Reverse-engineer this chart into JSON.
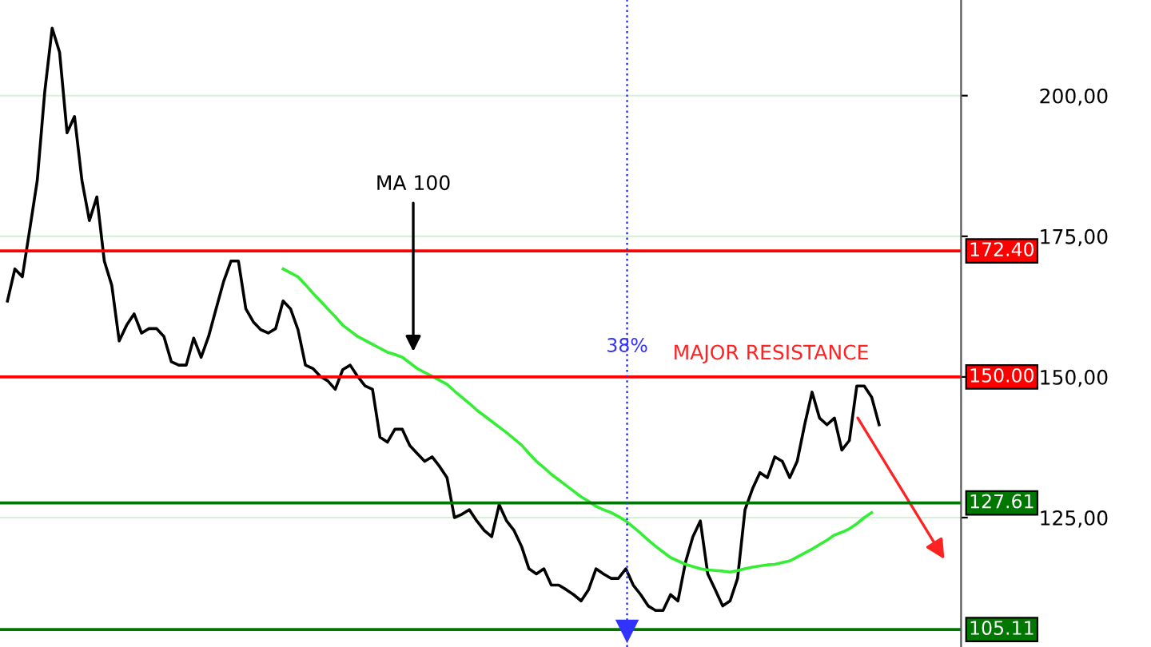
{
  "chart_data": {
    "type": "line",
    "categories": [
      null,
      null,
      null,
      null,
      null,
      null,
      null,
      null,
      null,
      null,
      null,
      null,
      null,
      null,
      null,
      null,
      null,
      null,
      null,
      null,
      null,
      null,
      null,
      null,
      null,
      null,
      null,
      null,
      null,
      null,
      null,
      null,
      null,
      null,
      null,
      null,
      null,
      null,
      null,
      null,
      null,
      null,
      null,
      null,
      null,
      null,
      null,
      null,
      null,
      null,
      null,
      null,
      null,
      null,
      null,
      null,
      null,
      null,
      null,
      null,
      null,
      null,
      null,
      null,
      null,
      null,
      null,
      null,
      null,
      null,
      null,
      null,
      null,
      null,
      null,
      null,
      null,
      null,
      null,
      null,
      null,
      null,
      null,
      null,
      null,
      null,
      null,
      null,
      null,
      null,
      null,
      null,
      null,
      null,
      null,
      null,
      null,
      null,
      null,
      null,
      null,
      null,
      null,
      null,
      null,
      null,
      null,
      null,
      null,
      null,
      null,
      null,
      null,
      null,
      null,
      null,
      null,
      null
    ],
    "series": [
      {
        "color": "#000000",
        "values": [
          163.5,
          169.2,
          167.8,
          176.3,
          184.9,
          200.6,
          212.0,
          207.7,
          193.4,
          196.3,
          184.9,
          177.8,
          182.0,
          170.6,
          166.3,
          156.4,
          159.2,
          161.2,
          157.8,
          158.6,
          158.6,
          157.2,
          152.7,
          152.1,
          152.1,
          156.9,
          153.5,
          157.2,
          162.1,
          166.9,
          170.6,
          170.6,
          162.1,
          159.8,
          158.4,
          157.8,
          158.6,
          163.5,
          162.1,
          158.4,
          152.1,
          151.5,
          150.1,
          149.3,
          147.8,
          151.3,
          152.1,
          150.1,
          148.4,
          147.8,
          139.3,
          138.4,
          140.7,
          140.7,
          137.8,
          136.4,
          135.0,
          135.8,
          134.1,
          132.1,
          125.0,
          125.6,
          126.4,
          124.4,
          122.7,
          121.6,
          127.3,
          124.4,
          122.7,
          119.9,
          115.9,
          115.0,
          115.9,
          113.0,
          113.0,
          112.2,
          111.3,
          110.2,
          112.2,
          115.9,
          115.0,
          114.2,
          114.2,
          115.9,
          113.0,
          111.3,
          109.3,
          108.5,
          108.5,
          111.3,
          110.2,
          117.0,
          121.6,
          124.4,
          115.0,
          112.2,
          109.3,
          110.2,
          114.2,
          126.4,
          130.1,
          133.0,
          132.1,
          135.8,
          135.0,
          132.1,
          135.0,
          141.5,
          147.3,
          142.7,
          141.5,
          142.7,
          137.0,
          138.7,
          148.4,
          148.4,
          146.4,
          141.5
        ]
      },
      {
        "color": "#33ee33",
        "values": [
          null,
          null,
          null,
          null,
          null,
          null,
          null,
          null,
          null,
          null,
          null,
          null,
          null,
          null,
          null,
          null,
          null,
          null,
          null,
          null,
          null,
          null,
          null,
          null,
          null,
          null,
          null,
          null,
          null,
          null,
          null,
          null,
          null,
          null,
          null,
          null,
          null,
          169.2,
          168.5,
          167.8,
          166.4,
          164.9,
          163.5,
          162.1,
          160.7,
          159.2,
          158.2,
          157.2,
          156.5,
          155.8,
          155.1,
          154.4,
          154.0,
          153.5,
          152.5,
          151.5,
          150.8,
          150.1,
          149.4,
          148.7,
          147.5,
          146.4,
          145.3,
          144.1,
          143.1,
          142.1,
          141.1,
          140.1,
          139.0,
          137.9,
          136.4,
          135.0,
          133.9,
          132.7,
          131.7,
          130.7,
          129.7,
          128.7,
          127.9,
          127.0,
          126.4,
          125.9,
          125.2,
          124.4,
          123.3,
          122.2,
          121.0,
          119.9,
          118.9,
          117.9,
          117.3,
          116.7,
          116.3,
          115.9,
          115.7,
          115.6,
          115.5,
          115.3,
          115.6,
          115.9,
          116.2,
          116.4,
          116.6,
          116.7,
          117.0,
          117.3,
          118.0,
          118.7,
          119.4,
          120.2,
          121.0,
          121.9,
          122.4,
          123.0,
          123.9,
          125.0,
          125.9,
          null
        ]
      }
    ],
    "ylim": [
      102,
      217
    ],
    "yticks": [
      {
        "value": 125,
        "label": "125,00"
      },
      {
        "value": 150,
        "label": "150,00"
      },
      {
        "value": 175,
        "label": "175,00"
      },
      {
        "value": 200,
        "label": "200,00"
      }
    ],
    "grid": "y",
    "tick_labels": "y",
    "ref_lines": [
      {
        "axis": "y",
        "value": 172.4,
        "label": "172.40",
        "color": "#ff0000"
      },
      {
        "axis": "y",
        "value": 150,
        "label": "150.00",
        "color": "#ff0000"
      },
      {
        "axis": "y",
        "value": 127.61,
        "label": "127.61",
        "color": "#007700"
      },
      {
        "axis": "y",
        "value": 105.11,
        "label": "105.11",
        "color": "#007700"
      }
    ],
    "annotations": [
      {
        "text": "MAJOR RESISTANCE",
        "y": 150
      },
      "MA 100",
      "38%"
    ]
  }
}
